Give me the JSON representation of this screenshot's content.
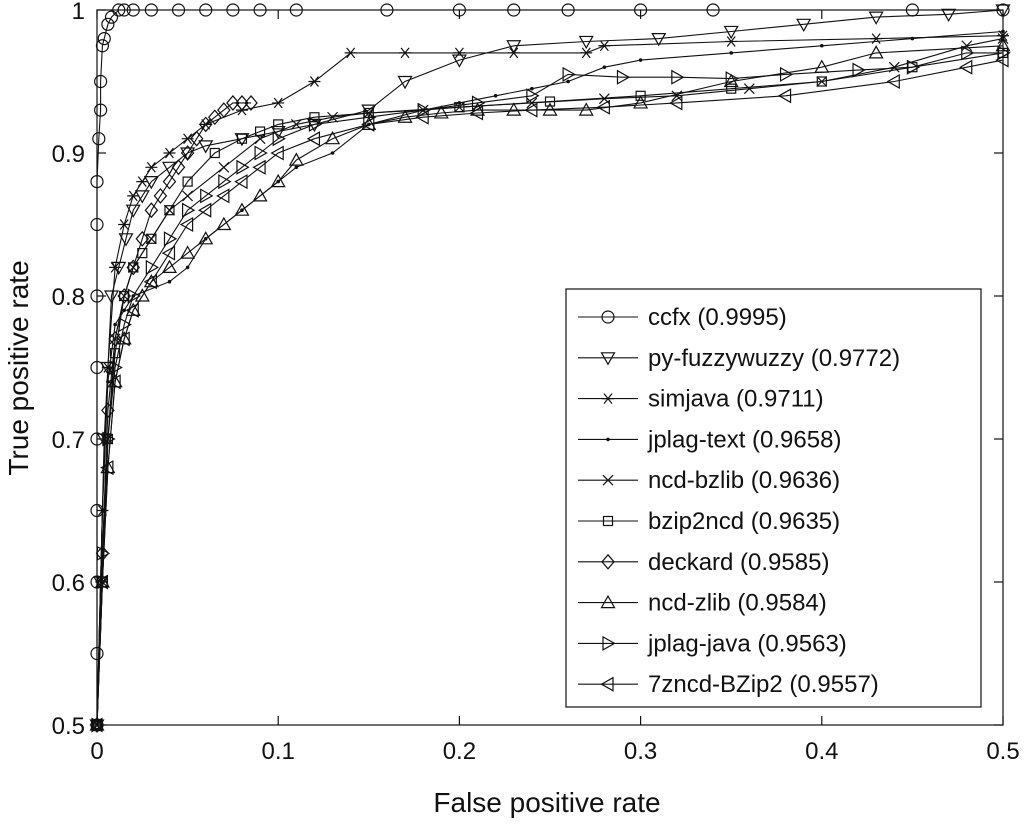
{
  "chart_data": {
    "type": "line",
    "title": "",
    "xlabel": "False positive rate",
    "ylabel": "True positive rate",
    "xlim": [
      0,
      0.5
    ],
    "ylim": [
      0.5,
      1
    ],
    "x_ticks": [
      0,
      0.1,
      0.2,
      0.3,
      0.4,
      0.5
    ],
    "x_tick_labels": [
      "0",
      "0.1",
      "0.2",
      "0.3",
      "0.4",
      "0.5"
    ],
    "y_ticks": [
      0.5,
      0.6,
      0.7,
      0.8,
      0.9,
      1
    ],
    "y_tick_labels": [
      "0.5",
      "0.6",
      "0.7",
      "0.8",
      "0.9",
      "1"
    ],
    "grid": false,
    "legend_position": "bottom-right",
    "series": [
      {
        "name": "ccfx (0.9995)",
        "marker": "circle",
        "x": [
          0,
          0,
          0,
          0,
          0,
          0,
          0,
          0,
          0,
          0.001,
          0.002,
          0.002,
          0.003,
          0.004,
          0.006,
          0.008,
          0.012,
          0.015,
          0.02,
          0.03,
          0.045,
          0.06,
          0.075,
          0.09,
          0.11,
          0.16,
          0.2,
          0.23,
          0.26,
          0.3,
          0.34,
          0.45,
          0.5
        ],
        "y": [
          0.5,
          0.55,
          0.6,
          0.65,
          0.7,
          0.75,
          0.8,
          0.85,
          0.88,
          0.91,
          0.93,
          0.95,
          0.975,
          0.98,
          0.99,
          0.995,
          1,
          1,
          1,
          1,
          1,
          1,
          1,
          1,
          1,
          1,
          1,
          1,
          1,
          1,
          1,
          1,
          1
        ]
      },
      {
        "name": "py-fuzzywuzzy (0.9772)",
        "marker": "triangle-down",
        "x": [
          0,
          0.002,
          0.004,
          0.006,
          0.008,
          0.012,
          0.016,
          0.02,
          0.025,
          0.03,
          0.04,
          0.05,
          0.06,
          0.08,
          0.1,
          0.12,
          0.15,
          0.17,
          0.2,
          0.23,
          0.27,
          0.31,
          0.35,
          0.39,
          0.43,
          0.47,
          0.5
        ],
        "y": [
          0.5,
          0.6,
          0.7,
          0.75,
          0.8,
          0.82,
          0.84,
          0.86,
          0.87,
          0.88,
          0.89,
          0.9,
          0.905,
          0.91,
          0.915,
          0.92,
          0.93,
          0.95,
          0.965,
          0.975,
          0.978,
          0.98,
          0.985,
          0.99,
          0.995,
          0.997,
          1
        ]
      },
      {
        "name": "simjava (0.9711)",
        "marker": "asterisk",
        "x": [
          0,
          0.003,
          0.006,
          0.01,
          0.015,
          0.02,
          0.025,
          0.03,
          0.04,
          0.05,
          0.06,
          0.08,
          0.1,
          0.12,
          0.14,
          0.17,
          0.2,
          0.23,
          0.27,
          0.28,
          0.35,
          0.43,
          0.5
        ],
        "y": [
          0.5,
          0.65,
          0.75,
          0.82,
          0.85,
          0.87,
          0.88,
          0.89,
          0.9,
          0.91,
          0.92,
          0.93,
          0.935,
          0.95,
          0.97,
          0.97,
          0.97,
          0.97,
          0.97,
          0.975,
          0.978,
          0.98,
          0.982
        ]
      },
      {
        "name": "jplag-text (0.9658)",
        "marker": "dot",
        "x": [
          0,
          0.003,
          0.006,
          0.01,
          0.015,
          0.02,
          0.04,
          0.05,
          0.06,
          0.08,
          0.1,
          0.11,
          0.13,
          0.15,
          0.18,
          0.2,
          0.22,
          0.24,
          0.26,
          0.28,
          0.3,
          0.35,
          0.4,
          0.45,
          0.5
        ],
        "y": [
          0.5,
          0.65,
          0.74,
          0.78,
          0.79,
          0.8,
          0.81,
          0.82,
          0.84,
          0.86,
          0.88,
          0.89,
          0.9,
          0.92,
          0.93,
          0.935,
          0.94,
          0.945,
          0.95,
          0.96,
          0.965,
          0.97,
          0.975,
          0.98,
          0.985
        ]
      },
      {
        "name": "ncd-bzlib (0.9636)",
        "marker": "cross",
        "x": [
          0,
          0.003,
          0.006,
          0.01,
          0.015,
          0.02,
          0.03,
          0.04,
          0.05,
          0.07,
          0.09,
          0.11,
          0.13,
          0.15,
          0.18,
          0.2,
          0.24,
          0.28,
          0.32,
          0.36,
          0.4,
          0.44,
          0.48,
          0.5
        ],
        "y": [
          0.5,
          0.6,
          0.7,
          0.77,
          0.8,
          0.82,
          0.84,
          0.86,
          0.87,
          0.89,
          0.91,
          0.92,
          0.925,
          0.928,
          0.93,
          0.932,
          0.935,
          0.938,
          0.94,
          0.945,
          0.95,
          0.96,
          0.975,
          0.98
        ]
      },
      {
        "name": "bzip2ncd (0.9635)",
        "marker": "square",
        "x": [
          0,
          0.003,
          0.006,
          0.01,
          0.015,
          0.02,
          0.025,
          0.03,
          0.04,
          0.05,
          0.065,
          0.08,
          0.09,
          0.1,
          0.12,
          0.15,
          0.2,
          0.25,
          0.3,
          0.35,
          0.4,
          0.45,
          0.5
        ],
        "y": [
          0.5,
          0.6,
          0.7,
          0.76,
          0.8,
          0.82,
          0.83,
          0.84,
          0.86,
          0.88,
          0.9,
          0.91,
          0.915,
          0.92,
          0.925,
          0.928,
          0.932,
          0.936,
          0.94,
          0.945,
          0.95,
          0.96,
          0.97
        ]
      },
      {
        "name": "deckard (0.9585)",
        "marker": "diamond",
        "x": [
          0,
          0.003,
          0.006,
          0.01,
          0.015,
          0.02,
          0.025,
          0.03,
          0.035,
          0.04,
          0.045,
          0.05,
          0.055,
          0.06,
          0.065,
          0.07,
          0.075,
          0.08,
          0.085
        ],
        "y": [
          0.5,
          0.62,
          0.72,
          0.77,
          0.8,
          0.82,
          0.84,
          0.86,
          0.87,
          0.88,
          0.89,
          0.9,
          0.91,
          0.92,
          0.925,
          0.93,
          0.935,
          0.935,
          0.935
        ]
      },
      {
        "name": "ncd-zlib (0.9584)",
        "marker": "triangle-up",
        "x": [
          0,
          0.003,
          0.006,
          0.01,
          0.015,
          0.02,
          0.025,
          0.03,
          0.04,
          0.05,
          0.06,
          0.07,
          0.08,
          0.09,
          0.1,
          0.11,
          0.13,
          0.15,
          0.17,
          0.19,
          0.21,
          0.23,
          0.25,
          0.27,
          0.3,
          0.35,
          0.4,
          0.43,
          0.5
        ],
        "y": [
          0.5,
          0.6,
          0.68,
          0.74,
          0.77,
          0.79,
          0.8,
          0.81,
          0.82,
          0.83,
          0.84,
          0.85,
          0.86,
          0.87,
          0.88,
          0.895,
          0.91,
          0.92,
          0.925,
          0.928,
          0.93,
          0.93,
          0.93,
          0.93,
          0.935,
          0.95,
          0.96,
          0.97,
          0.975
        ]
      },
      {
        "name": "jplag-java (0.9563)",
        "marker": "triangle-right",
        "x": [
          0,
          0.003,
          0.006,
          0.01,
          0.015,
          0.02,
          0.03,
          0.04,
          0.05,
          0.06,
          0.07,
          0.08,
          0.09,
          0.1,
          0.12,
          0.15,
          0.18,
          0.21,
          0.24,
          0.26,
          0.29,
          0.32,
          0.35,
          0.38,
          0.42,
          0.45,
          0.48,
          0.5
        ],
        "y": [
          0.5,
          0.62,
          0.7,
          0.75,
          0.78,
          0.8,
          0.82,
          0.84,
          0.86,
          0.87,
          0.88,
          0.89,
          0.9,
          0.91,
          0.92,
          0.925,
          0.93,
          0.935,
          0.94,
          0.955,
          0.953,
          0.953,
          0.952,
          0.955,
          0.958,
          0.96,
          0.97,
          0.97
        ]
      },
      {
        "name": "7zncd-BZip2 (0.9557)",
        "marker": "triangle-left",
        "x": [
          0,
          0.003,
          0.006,
          0.01,
          0.015,
          0.02,
          0.03,
          0.04,
          0.05,
          0.06,
          0.07,
          0.08,
          0.09,
          0.1,
          0.12,
          0.15,
          0.18,
          0.21,
          0.24,
          0.28,
          0.32,
          0.38,
          0.44,
          0.48,
          0.5
        ],
        "y": [
          0.5,
          0.6,
          0.68,
          0.74,
          0.77,
          0.79,
          0.81,
          0.83,
          0.85,
          0.86,
          0.87,
          0.88,
          0.89,
          0.9,
          0.91,
          0.92,
          0.925,
          0.928,
          0.93,
          0.932,
          0.935,
          0.94,
          0.95,
          0.96,
          0.965
        ]
      }
    ]
  }
}
